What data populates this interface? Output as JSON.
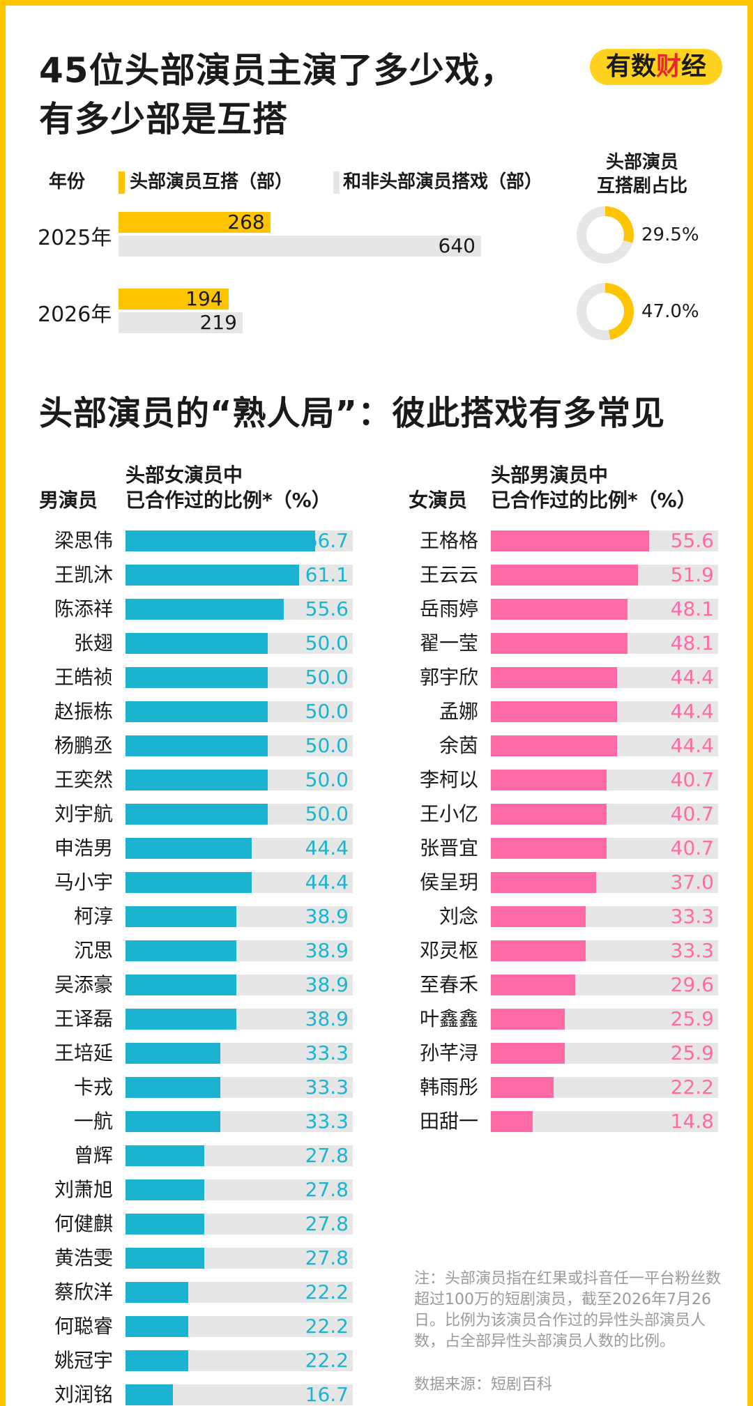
{
  "title_line1": "45位头部演员主演了多少戏，",
  "title_line2": "有多少部是互搭",
  "logo": {
    "prefix": "有数",
    "accent": "财",
    "suffix": "经"
  },
  "colors": {
    "yellow": "#ffc400",
    "gray": "#e6e6e6",
    "teal": "#1bb3d0",
    "pink": "#ff6aa6"
  },
  "chart_data": [
    {
      "type": "bar",
      "headers": {
        "year": "年份",
        "series1": "头部演员互搭（部）",
        "series2": "和非头部演员搭戏（部）",
        "ratio_line1": "头部演员",
        "ratio_line2": "互搭剧占比"
      },
      "categories": [
        "2025年",
        "2026年"
      ],
      "series": [
        {
          "name": "头部演员互搭（部）",
          "values": [
            268,
            194
          ]
        },
        {
          "name": "和非头部演员搭戏（部）",
          "values": [
            640,
            219
          ]
        }
      ],
      "ratio": {
        "values": [
          29.5,
          47.0
        ],
        "labels": [
          "29.5%",
          "47.0%"
        ]
      }
    },
    {
      "type": "bar",
      "title": "头部演员的“熟人局”：彼此搭戏有多常见",
      "header_name": "男演员",
      "header_line1": "头部女演员中",
      "header_line2": "已合作过的比例*（%）",
      "ylim": [
        0,
        100
      ],
      "categories": [
        "梁思伟",
        "王凯沐",
        "陈添祥",
        "张翅",
        "王皓祯",
        "赵振栋",
        "杨鹏丞",
        "王奕然",
        "刘宇航",
        "申浩男",
        "马小宇",
        "柯淳",
        "沉思",
        "吴添豪",
        "王译磊",
        "王培延",
        "卡戎",
        "一航",
        "曾辉",
        "刘萧旭",
        "何健麒",
        "黄浩雯",
        "蔡欣洋",
        "何聪睿",
        "姚冠宇",
        "刘润铭"
      ],
      "values": [
        "66.7",
        "61.1",
        "55.6",
        "50.0",
        "50.0",
        "50.0",
        "50.0",
        "50.0",
        "50.0",
        "44.4",
        "44.4",
        "38.9",
        "38.9",
        "38.9",
        "38.9",
        "33.3",
        "33.3",
        "33.3",
        "27.8",
        "27.8",
        "27.8",
        "27.8",
        "22.2",
        "22.2",
        "22.2",
        "16.7"
      ]
    },
    {
      "type": "bar",
      "header_name": "女演员",
      "header_line1": "头部男演员中",
      "header_line2": "已合作过的比例*（%）",
      "ylim": [
        0,
        100
      ],
      "categories": [
        "王格格",
        "王云云",
        "岳雨婷",
        "翟一莹",
        "郭宇欣",
        "孟娜",
        "余茵",
        "李柯以",
        "王小亿",
        "张晋宜",
        "侯呈玥",
        "刘念",
        "邓灵枢",
        "至春禾",
        "叶鑫鑫",
        "孙芊浔",
        "韩雨彤",
        "田甜一"
      ],
      "values": [
        "55.6",
        "51.9",
        "48.1",
        "48.1",
        "44.4",
        "44.4",
        "44.4",
        "40.7",
        "40.7",
        "40.7",
        "37.0",
        "33.3",
        "33.3",
        "29.6",
        "25.9",
        "25.9",
        "22.2",
        "14.8"
      ]
    }
  ],
  "note": "注：头部演员指在红果或抖音任一平台粉丝数超过100万的短剧演员，截至2026年7月26日。比例为该演员合作过的异性头部演员人数，占全部异性头部演员人数的比例。",
  "source": "数据来源：短剧百科"
}
